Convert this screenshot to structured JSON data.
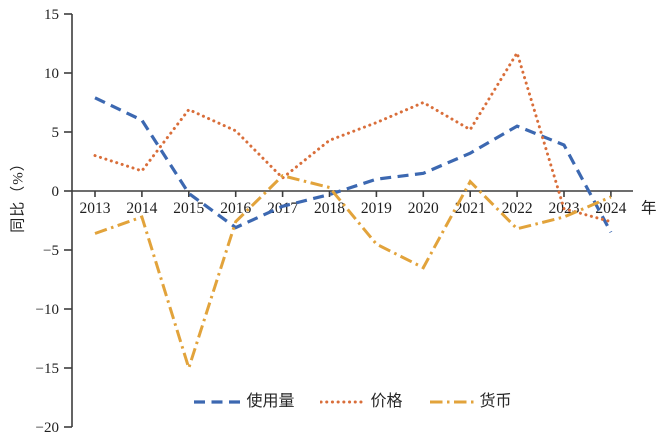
{
  "chart_data": {
    "type": "line",
    "title": "",
    "ylabel": "同比（%）",
    "xlabel": "",
    "x_axis_suffix": "年",
    "categories": [
      "2013",
      "2014",
      "2015",
      "2016",
      "2017",
      "2018",
      "2019",
      "2020",
      "2021",
      "2022",
      "2023",
      "2024"
    ],
    "ylim": [
      -20,
      15
    ],
    "ytick_step": 5,
    "grid": false,
    "legend_position": "bottom",
    "axis_color": "#3d3d3d",
    "series": [
      {
        "name": "使用量",
        "style": "dashed",
        "color": "#3c68b1",
        "values": [
          7.9,
          6.0,
          -0.2,
          -3.1,
          -1.3,
          -0.3,
          1.0,
          1.5,
          3.2,
          5.5,
          3.9,
          -3.5
        ]
      },
      {
        "name": "价格",
        "style": "dotted",
        "color": "#d96e3a",
        "values": [
          3.0,
          1.7,
          6.9,
          5.1,
          1.1,
          4.3,
          5.8,
          7.5,
          5.2,
          11.7,
          -1.5,
          -2.6
        ]
      },
      {
        "name": "货币",
        "style": "dashdot",
        "color": "#e2a33b",
        "values": [
          -3.6,
          -2.2,
          -15.0,
          -2.6,
          1.3,
          0.3,
          -4.5,
          -6.5,
          0.8,
          -3.2,
          -2.2,
          -0.5
        ]
      }
    ]
  }
}
